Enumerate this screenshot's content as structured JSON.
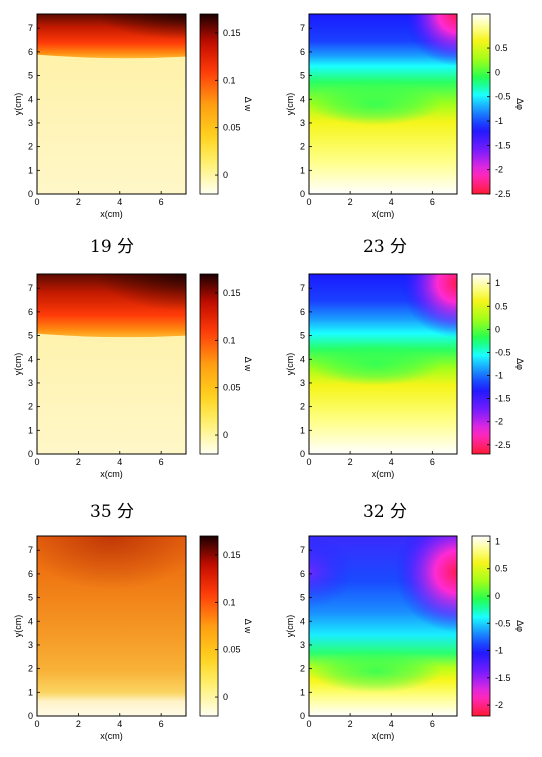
{
  "chart_data": [
    {
      "type": "heatmap",
      "caption": "19 分",
      "colormap": "hot",
      "xlabel": "x(cm)",
      "ylabel": "y(cm)",
      "colorbar_label": "Δ w",
      "xlim": [
        0,
        7.2
      ],
      "ylim": [
        0,
        7.6
      ],
      "xticks": [
        "0",
        "2",
        "4",
        "6"
      ],
      "yticks": [
        "0",
        "1",
        "2",
        "3",
        "4",
        "5",
        "6",
        "7"
      ],
      "clim": [
        -0.02,
        0.17
      ],
      "colorbar_ticks": [
        "0",
        "0.05",
        "0.1",
        "0.15"
      ],
      "front_y_cm": 5.8
    },
    {
      "type": "heatmap",
      "caption": "23 分",
      "colormap": "hsv",
      "xlabel": "x(cm)",
      "ylabel": "y(cm)",
      "colorbar_label": "Δφ",
      "xlim": [
        0,
        7.2
      ],
      "ylim": [
        0,
        7.6
      ],
      "xticks": [
        "0",
        "2",
        "4",
        "6"
      ],
      "yticks": [
        "0",
        "1",
        "2",
        "3",
        "4",
        "5",
        "6",
        "7"
      ],
      "clim": [
        -2.5,
        1.2
      ],
      "colorbar_ticks": [
        "0.5",
        "0",
        "-0.5",
        "-1",
        "-1.5",
        "-2",
        "-2.5"
      ]
    },
    {
      "type": "heatmap",
      "caption": "35 分",
      "colormap": "hot",
      "xlabel": "x(cm)",
      "ylabel": "y(cm)",
      "colorbar_label": "Δ w",
      "xlim": [
        0,
        7.2
      ],
      "ylim": [
        0,
        7.6
      ],
      "xticks": [
        "0",
        "2",
        "4",
        "6"
      ],
      "yticks": [
        "0",
        "1",
        "2",
        "3",
        "4",
        "5",
        "6",
        "7"
      ],
      "clim": [
        -0.02,
        0.17
      ],
      "colorbar_ticks": [
        "0",
        "0.05",
        "0.1",
        "0.15"
      ],
      "front_y_cm": 5.0
    },
    {
      "type": "heatmap",
      "caption": "32 分",
      "colormap": "hsv",
      "xlabel": "x(cm)",
      "ylabel": "y(cm)",
      "colorbar_label": "Δφ",
      "xlim": [
        0,
        7.2
      ],
      "ylim": [
        0,
        7.6
      ],
      "xticks": [
        "0",
        "2",
        "4",
        "6"
      ],
      "yticks": [
        "0",
        "1",
        "2",
        "3",
        "4",
        "5",
        "6",
        "7"
      ],
      "clim": [
        -2.7,
        1.2
      ],
      "colorbar_ticks": [
        "1",
        "0.5",
        "0",
        "-0.5",
        "-1",
        "-1.5",
        "-2",
        "-2.5"
      ]
    },
    {
      "type": "heatmap",
      "caption": "",
      "colormap": "hot",
      "xlabel": "x(cm)",
      "ylabel": "y(cm)",
      "colorbar_label": "Δ w",
      "xlim": [
        0,
        7.2
      ],
      "ylim": [
        0,
        7.6
      ],
      "xticks": [
        "0",
        "2",
        "4",
        "6"
      ],
      "yticks": [
        "0",
        "1",
        "2",
        "3",
        "4",
        "5",
        "6",
        "7"
      ],
      "clim": [
        -0.02,
        0.17
      ],
      "colorbar_ticks": [
        "0",
        "0.05",
        "0.1",
        "0.15"
      ],
      "front_y_cm": 1.5
    },
    {
      "type": "heatmap",
      "caption": "",
      "colormap": "hsv",
      "xlabel": "x(cm)",
      "ylabel": "y(cm)",
      "colorbar_label": "Δφ",
      "xlim": [
        0,
        7.2
      ],
      "ylim": [
        0,
        7.6
      ],
      "xticks": [
        "0",
        "2",
        "4",
        "6"
      ],
      "yticks": [
        "0",
        "1",
        "2",
        "3",
        "4",
        "5",
        "6",
        "7"
      ],
      "clim": [
        -2.2,
        1.1
      ],
      "colorbar_ticks": [
        "1",
        "0.5",
        "0",
        "-0.5",
        "-1",
        "-1.5",
        "-2"
      ]
    }
  ]
}
